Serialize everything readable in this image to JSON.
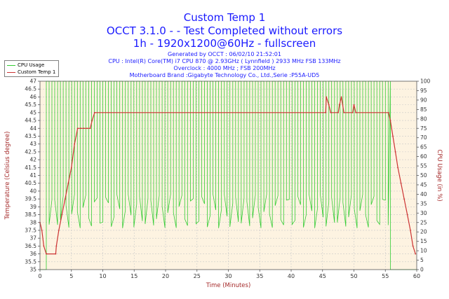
{
  "header": {
    "title": "Custom Temp 1",
    "subtitle1": "OCCT 3.1.0 -  - Test Completed without errors",
    "subtitle2": "1h - 1920x1200@60Hz - fullscreen",
    "generated": "Generated by OCCT : 06/02/10 21:52:01",
    "cpu": "CPU : Intel(R) Core(TM) i7 CPU 870 @ 2.93GHz ( Lynnfield ) 2933 MHz FSB 133MHz",
    "overclock": "Overclock : 4000 MHz ; FSB 200MHz",
    "motherboard": "Motherboard Brand :Gigabyte Technology Co., Ltd.,Serie :P55A-UD5"
  },
  "chart_data": {
    "type": "line",
    "xlabel": "Time (Minutes)",
    "ylabel_left": "Temperature (Celsius degree)",
    "ylabel_right": "CPU Usage (in %)",
    "xlim": [
      0,
      60
    ],
    "ylim_left": [
      35,
      47
    ],
    "ylim_right": [
      0,
      100
    ],
    "x_ticks": [
      "0",
      "5",
      "10",
      "15",
      "20",
      "25",
      "30",
      "35",
      "40",
      "45",
      "50",
      "55",
      "60"
    ],
    "y_ticks_left": [
      "35",
      "35.5",
      "36",
      "36.5",
      "37",
      "37.5",
      "38",
      "38.5",
      "39",
      "39.5",
      "40",
      "40.5",
      "41",
      "41.5",
      "42",
      "42.5",
      "43",
      "43.5",
      "44",
      "44.5",
      "45",
      "45.5",
      "46",
      "46.5",
      "47"
    ],
    "y_ticks_right": [
      "0",
      "5",
      "10",
      "15",
      "20",
      "25",
      "30",
      "35",
      "40",
      "45",
      "50",
      "55",
      "60",
      "65",
      "70",
      "75",
      "80",
      "85",
      "90",
      "95",
      "100"
    ],
    "legend_position": "top-left",
    "series": [
      {
        "name": "CPU Usage",
        "color": "#33cc33",
        "axis": "right",
        "pattern": "oscillating between ~20% and 100% from about minute 1 to 56, 0% before and after",
        "active_range": [
          1.0,
          55.8
        ],
        "low": 22,
        "high": 100
      },
      {
        "name": "Custom Temp 1",
        "color": "#cc3333",
        "axis": "left",
        "points": [
          [
            0,
            38
          ],
          [
            0.3,
            37.5
          ],
          [
            0.6,
            36.5
          ],
          [
            1.0,
            36
          ],
          [
            2.5,
            36
          ],
          [
            2.6,
            36.5
          ],
          [
            3.0,
            37.5
          ],
          [
            3.5,
            38.5
          ],
          [
            4.0,
            39.5
          ],
          [
            4.5,
            40.5
          ],
          [
            5.0,
            41.5
          ],
          [
            5.5,
            43
          ],
          [
            6.0,
            44
          ],
          [
            6.5,
            44
          ],
          [
            7.0,
            44
          ],
          [
            7.5,
            44
          ],
          [
            8.0,
            44
          ],
          [
            8.3,
            44.5
          ],
          [
            8.7,
            45
          ],
          [
            45.5,
            45
          ],
          [
            45.6,
            46
          ],
          [
            46.0,
            45.5
          ],
          [
            46.3,
            45
          ],
          [
            47.5,
            45
          ],
          [
            47.7,
            45.5
          ],
          [
            48.0,
            46
          ],
          [
            48.4,
            45
          ],
          [
            49.8,
            45
          ],
          [
            50.0,
            45.5
          ],
          [
            50.3,
            45
          ],
          [
            55.5,
            45
          ],
          [
            55.8,
            44.5
          ],
          [
            56.2,
            43.5
          ],
          [
            56.6,
            42.5
          ],
          [
            57.0,
            41.5
          ],
          [
            57.5,
            40.5
          ],
          [
            58.0,
            39.5
          ],
          [
            58.5,
            38.5
          ],
          [
            59.0,
            37.5
          ],
          [
            59.4,
            36.5
          ],
          [
            59.8,
            36
          ]
        ]
      }
    ]
  }
}
